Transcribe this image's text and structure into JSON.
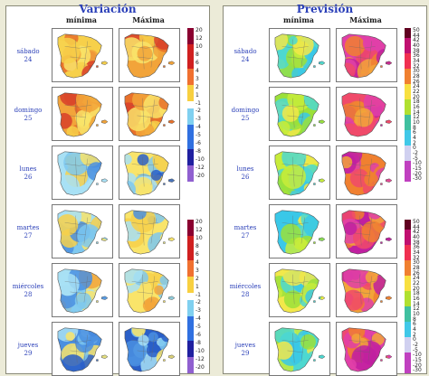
{
  "variacion": {
    "title": "Variación",
    "col_min": "mínima",
    "col_max": "Máxima"
  },
  "prevision": {
    "title": "Previsión",
    "col_min": "mínima",
    "col_max": "Máxima"
  },
  "days": [
    {
      "name": "sábado",
      "num": "24"
    },
    {
      "name": "domingo",
      "num": "25"
    },
    {
      "name": "lunes",
      "num": "26"
    },
    {
      "name": "martes",
      "num": "27"
    },
    {
      "name": "miércoles",
      "num": "28"
    },
    {
      "name": "jueves",
      "num": "29"
    }
  ],
  "var_scale_ticks": [
    "20",
    "12",
    "10",
    "8",
    "6",
    "4",
    "3",
    "2",
    "1",
    "-1",
    "-2",
    "-3",
    "-4",
    "-5",
    "-6",
    "-8",
    "-10",
    "-12",
    "-20"
  ],
  "prev_scale_ticks": [
    "50",
    "44",
    "42",
    "40",
    "38",
    "36",
    "34",
    "32",
    "30",
    "28",
    "26",
    "24",
    "22",
    "20",
    "18",
    "16",
    "14",
    "12",
    "10",
    "8",
    "6",
    "4",
    "2",
    "0",
    "-2",
    "-5",
    "-10",
    "-15",
    "-20",
    "-30"
  ],
  "colors": {
    "panel_title": "#2a3fb8",
    "day_label": "#2a3fb8",
    "sea": "#ffffff",
    "land_outline": "#555555"
  }
}
